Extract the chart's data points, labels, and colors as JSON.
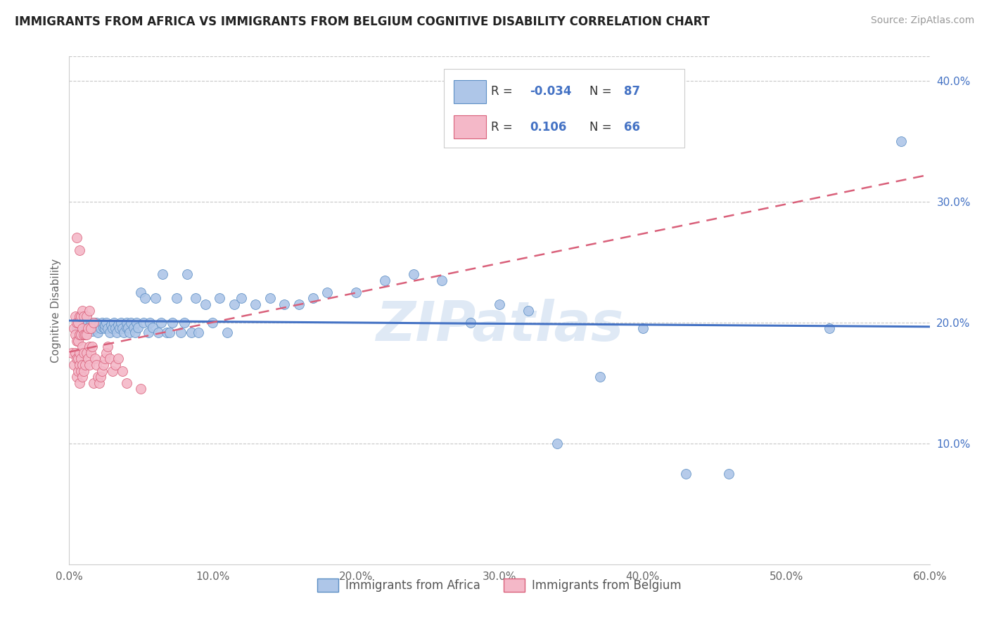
{
  "title": "IMMIGRANTS FROM AFRICA VS IMMIGRANTS FROM BELGIUM COGNITIVE DISABILITY CORRELATION CHART",
  "source": "Source: ZipAtlas.com",
  "ylabel": "Cognitive Disability",
  "xlim": [
    0.0,
    0.6
  ],
  "ylim": [
    0.0,
    0.42
  ],
  "xtick_labels": [
    "0.0%",
    "",
    "10.0%",
    "",
    "20.0%",
    "",
    "30.0%",
    "",
    "40.0%",
    "",
    "50.0%",
    "",
    "60.0%"
  ],
  "xtick_vals": [
    0.0,
    0.05,
    0.1,
    0.15,
    0.2,
    0.25,
    0.3,
    0.35,
    0.4,
    0.45,
    0.5,
    0.55,
    0.6
  ],
  "ytick_labels": [
    "10.0%",
    "20.0%",
    "30.0%",
    "40.0%"
  ],
  "ytick_vals": [
    0.1,
    0.2,
    0.3,
    0.4
  ],
  "africa_color": "#aec6e8",
  "africa_edge_color": "#5b8ec4",
  "belgium_color": "#f4b8c8",
  "belgium_edge_color": "#d9607a",
  "africa_line_color": "#4472c4",
  "belgium_line_color": "#d9607a",
  "R_africa": -0.034,
  "N_africa": 87,
  "R_belgium": 0.106,
  "N_belgium": 66,
  "legend_color": "#4472c4",
  "watermark": "ZIPatlas",
  "background_color": "#ffffff",
  "grid_color": "#c8c8c8",
  "africa_scatter_x": [
    0.005,
    0.008,
    0.01,
    0.01,
    0.012,
    0.013,
    0.015,
    0.015,
    0.016,
    0.017,
    0.018,
    0.019,
    0.02,
    0.021,
    0.022,
    0.023,
    0.024,
    0.025,
    0.025,
    0.026,
    0.027,
    0.028,
    0.029,
    0.03,
    0.031,
    0.032,
    0.033,
    0.034,
    0.035,
    0.036,
    0.037,
    0.038,
    0.04,
    0.04,
    0.041,
    0.042,
    0.043,
    0.045,
    0.046,
    0.047,
    0.048,
    0.05,
    0.052,
    0.053,
    0.055,
    0.056,
    0.058,
    0.06,
    0.062,
    0.064,
    0.065,
    0.068,
    0.07,
    0.072,
    0.075,
    0.078,
    0.08,
    0.082,
    0.085,
    0.088,
    0.09,
    0.095,
    0.1,
    0.105,
    0.11,
    0.115,
    0.12,
    0.13,
    0.14,
    0.15,
    0.16,
    0.17,
    0.18,
    0.2,
    0.22,
    0.24,
    0.26,
    0.28,
    0.3,
    0.32,
    0.34,
    0.37,
    0.4,
    0.43,
    0.46,
    0.53,
    0.58
  ],
  "africa_scatter_y": [
    0.195,
    0.2,
    0.19,
    0.205,
    0.195,
    0.2,
    0.195,
    0.198,
    0.193,
    0.2,
    0.195,
    0.2,
    0.192,
    0.198,
    0.195,
    0.2,
    0.196,
    0.195,
    0.198,
    0.2,
    0.195,
    0.192,
    0.198,
    0.195,
    0.2,
    0.195,
    0.192,
    0.198,
    0.195,
    0.2,
    0.195,
    0.192,
    0.196,
    0.2,
    0.196,
    0.192,
    0.2,
    0.196,
    0.192,
    0.2,
    0.196,
    0.225,
    0.2,
    0.22,
    0.192,
    0.2,
    0.196,
    0.22,
    0.192,
    0.2,
    0.24,
    0.192,
    0.192,
    0.2,
    0.22,
    0.192,
    0.2,
    0.24,
    0.192,
    0.22,
    0.192,
    0.215,
    0.2,
    0.22,
    0.192,
    0.215,
    0.22,
    0.215,
    0.22,
    0.215,
    0.215,
    0.22,
    0.225,
    0.225,
    0.235,
    0.24,
    0.235,
    0.2,
    0.215,
    0.21,
    0.1,
    0.155,
    0.195,
    0.075,
    0.075,
    0.195,
    0.35
  ],
  "belgium_scatter_x": [
    0.002,
    0.003,
    0.003,
    0.004,
    0.004,
    0.004,
    0.005,
    0.005,
    0.005,
    0.005,
    0.005,
    0.006,
    0.006,
    0.006,
    0.006,
    0.007,
    0.007,
    0.007,
    0.007,
    0.007,
    0.007,
    0.008,
    0.008,
    0.008,
    0.008,
    0.009,
    0.009,
    0.009,
    0.009,
    0.009,
    0.01,
    0.01,
    0.01,
    0.01,
    0.011,
    0.011,
    0.012,
    0.012,
    0.012,
    0.013,
    0.013,
    0.014,
    0.014,
    0.014,
    0.015,
    0.015,
    0.016,
    0.017,
    0.017,
    0.018,
    0.019,
    0.02,
    0.021,
    0.022,
    0.023,
    0.024,
    0.025,
    0.026,
    0.027,
    0.028,
    0.03,
    0.032,
    0.034,
    0.037,
    0.04,
    0.05
  ],
  "belgium_scatter_y": [
    0.175,
    0.165,
    0.195,
    0.175,
    0.19,
    0.205,
    0.155,
    0.17,
    0.185,
    0.2,
    0.27,
    0.16,
    0.17,
    0.185,
    0.2,
    0.15,
    0.165,
    0.175,
    0.19,
    0.205,
    0.26,
    0.16,
    0.17,
    0.19,
    0.205,
    0.165,
    0.18,
    0.195,
    0.155,
    0.21,
    0.16,
    0.175,
    0.19,
    0.205,
    0.165,
    0.19,
    0.175,
    0.19,
    0.205,
    0.17,
    0.195,
    0.165,
    0.18,
    0.21,
    0.175,
    0.195,
    0.18,
    0.15,
    0.2,
    0.17,
    0.165,
    0.155,
    0.15,
    0.155,
    0.16,
    0.165,
    0.17,
    0.175,
    0.18,
    0.17,
    0.16,
    0.165,
    0.17,
    0.16,
    0.15,
    0.145
  ]
}
